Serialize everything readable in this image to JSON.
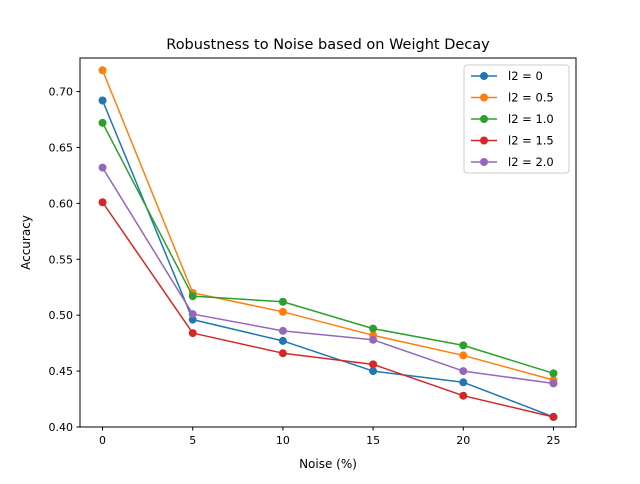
{
  "chart_data": {
    "type": "line",
    "title": "Robustness to Noise based on Weight Decay",
    "xlabel": "Noise (%)",
    "ylabel": "Accuracy",
    "x": [
      0,
      5,
      10,
      15,
      20,
      25
    ],
    "xlim": [
      -1.25,
      26.25
    ],
    "ylim": [
      0.4,
      0.73
    ],
    "xticks": [
      0,
      5,
      10,
      15,
      20,
      25
    ],
    "xtick_labels": [
      "0",
      "5",
      "10",
      "15",
      "20",
      "25"
    ],
    "yticks": [
      0.4,
      0.45,
      0.5,
      0.55,
      0.6,
      0.65,
      0.7
    ],
    "ytick_labels": [
      "0.40",
      "0.45",
      "0.50",
      "0.55",
      "0.60",
      "0.65",
      "0.70"
    ],
    "grid": false,
    "legend_position": "upper right",
    "series": [
      {
        "name": "l2 = 0",
        "color": "#1f77b4",
        "marker": "circle",
        "values": [
          0.692,
          0.496,
          0.477,
          0.45,
          0.44,
          0.409
        ]
      },
      {
        "name": "l2 = 0.5",
        "color": "#ff7f0e",
        "marker": "circle",
        "values": [
          0.719,
          0.52,
          0.503,
          0.482,
          0.464,
          0.442
        ]
      },
      {
        "name": "l2 = 1.0",
        "color": "#2ca02c",
        "marker": "circle",
        "values": [
          0.672,
          0.517,
          0.512,
          0.488,
          0.473,
          0.448
        ]
      },
      {
        "name": "l2 = 1.5",
        "color": "#d62728",
        "marker": "circle",
        "values": [
          0.601,
          0.484,
          0.466,
          0.456,
          0.428,
          0.409
        ]
      },
      {
        "name": "l2 = 2.0",
        "color": "#9467bd",
        "marker": "circle",
        "values": [
          0.632,
          0.501,
          0.486,
          0.478,
          0.45,
          0.439
        ]
      }
    ]
  }
}
